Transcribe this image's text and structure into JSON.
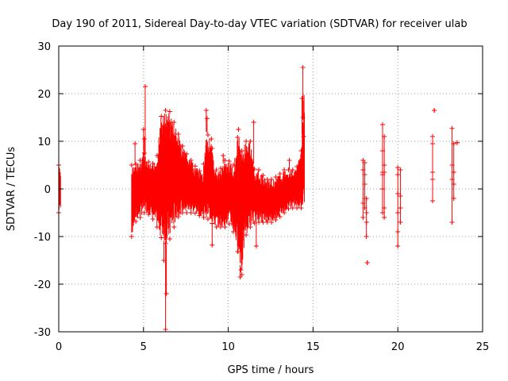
{
  "chart_data": {
    "type": "scatter",
    "title": "Day 190 of 2011, Sidereal Day-to-day VTEC variation (SDTVAR) for receiver ulab",
    "xlabel": "GPS time / hours",
    "ylabel": "SDTVAR / TECUs",
    "xlim": [
      0,
      25
    ],
    "ylim": [
      -30,
      30
    ],
    "xticks": [
      0,
      5,
      10,
      15,
      20,
      25
    ],
    "yticks": [
      -30,
      -20,
      -10,
      0,
      10,
      20,
      30
    ],
    "xtick_labels": [
      "0",
      "5",
      "10",
      "15",
      "20",
      "25"
    ],
    "ytick_labels": [
      "-30",
      "-20",
      "-10",
      "0",
      "10",
      "20",
      "30"
    ],
    "grid": true,
    "marker": "+",
    "series": [
      {
        "name": "SDTVAR",
        "color": "#ff0000",
        "envelope_x": [
          0.0,
          0.1,
          4.3,
          4.5,
          4.8,
          5.0,
          5.2,
          5.5,
          5.8,
          6.0,
          6.2,
          6.4,
          6.6,
          6.8,
          7.0,
          7.3,
          7.6,
          8.0,
          8.5,
          8.7,
          9.0,
          9.2,
          9.5,
          9.8,
          10.0,
          10.3,
          10.6,
          10.8,
          11.0,
          11.3,
          11.6,
          11.8,
          12.0,
          12.3,
          12.6,
          13.0,
          13.3,
          13.6,
          14.0,
          14.3,
          14.5
        ],
        "envelope_upper": [
          5,
          4,
          5,
          5,
          6,
          8,
          6,
          5,
          7,
          15,
          16,
          17,
          16,
          14,
          12,
          9,
          7,
          5,
          3,
          12,
          10,
          4,
          4,
          6,
          6,
          5,
          12,
          8,
          10,
          10,
          3,
          4,
          3,
          2,
          2,
          3,
          4,
          4,
          4,
          8,
          22
        ],
        "envelope_lower": [
          -5,
          -4,
          -10,
          -7,
          -6,
          -5,
          -5,
          -6,
          -8,
          -10,
          -11,
          -12,
          -10,
          -8,
          -6,
          -5,
          -5,
          -5,
          -6,
          -6,
          -7,
          -8,
          -8,
          -8,
          -7,
          -9,
          -14,
          -18,
          -10,
          -8,
          -7,
          -7,
          -7,
          -7,
          -7,
          -6,
          -5,
          -4,
          -4,
          -4,
          -4
        ],
        "scattered_points": [
          {
            "x": 5.1,
            "y": 21.5
          },
          {
            "x": 5.0,
            "y": 12.5
          },
          {
            "x": 5.05,
            "y": 10.5
          },
          {
            "x": 4.5,
            "y": 9.5
          },
          {
            "x": 6.35,
            "y": -22
          },
          {
            "x": 6.3,
            "y": -29.5
          },
          {
            "x": 6.2,
            "y": -15
          },
          {
            "x": 8.7,
            "y": 16.5
          },
          {
            "x": 8.75,
            "y": 14.8
          },
          {
            "x": 9.0,
            "y": 10.5
          },
          {
            "x": 9.05,
            "y": -11.8
          },
          {
            "x": 9.7,
            "y": 7
          },
          {
            "x": 9.8,
            "y": 6
          },
          {
            "x": 10.6,
            "y": 12.5
          },
          {
            "x": 10.7,
            "y": -18.5
          },
          {
            "x": 10.75,
            "y": -17
          },
          {
            "x": 11.5,
            "y": 14
          },
          {
            "x": 11.65,
            "y": -12
          },
          {
            "x": 13.6,
            "y": 6
          },
          {
            "x": 14.4,
            "y": 25.5
          },
          {
            "x": 14.35,
            "y": 19
          },
          {
            "x": 14.4,
            "y": 15
          },
          {
            "x": 14.45,
            "y": 11
          }
        ],
        "sparse_clusters": [
          {
            "x": 17.95,
            "ymin": -6,
            "ymax": 6,
            "extra": [
              -3,
              4
            ]
          },
          {
            "x": 18.05,
            "ymin": -4,
            "ymax": 5.5,
            "extra": [
              -2,
              1,
              3
            ]
          },
          {
            "x": 18.15,
            "ymin": -10,
            "ymax": -2,
            "extra": [
              -5,
              -7
            ]
          },
          {
            "x": 18.2,
            "ymin": -15.5,
            "ymax": -15.5,
            "extra": []
          },
          {
            "x": 19.1,
            "ymin": -5,
            "ymax": 13.5,
            "extra": [
              3.5,
              3,
              0,
              8
            ]
          },
          {
            "x": 19.2,
            "ymin": -6,
            "ymax": 11,
            "extra": [
              3.5,
              -4,
              5
            ]
          },
          {
            "x": 20.0,
            "ymin": -12,
            "ymax": 4.5,
            "extra": [
              -1,
              -5,
              -9,
              3
            ]
          },
          {
            "x": 20.15,
            "ymin": -7,
            "ymax": 4,
            "extra": [
              -4,
              -1.5
            ]
          },
          {
            "x": 22.05,
            "ymin": -2.5,
            "ymax": 11,
            "extra": [
              2,
              3.5,
              9.5
            ]
          },
          {
            "x": 22.15,
            "ymin": 16.5,
            "ymax": 16.5,
            "extra": []
          },
          {
            "x": 23.2,
            "ymin": -7,
            "ymax": 12.7,
            "extra": [
              5,
              2
            ]
          },
          {
            "x": 23.3,
            "ymin": -2,
            "ymax": 9.5,
            "extra": [
              3.5,
              1
            ]
          },
          {
            "x": 23.5,
            "ymin": 9.7,
            "ymax": 9.7,
            "extra": []
          }
        ]
      }
    ]
  }
}
